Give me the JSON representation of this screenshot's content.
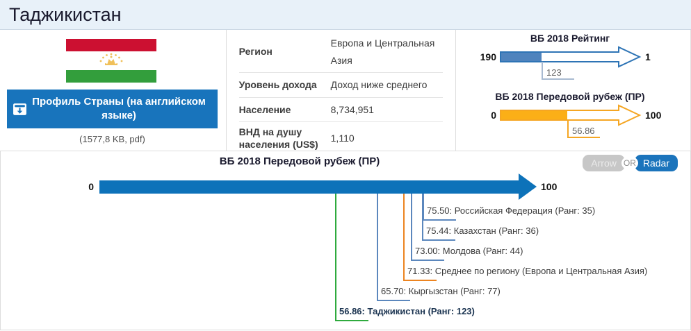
{
  "header": {
    "title": "Таджикистан"
  },
  "profile": {
    "download_button_label": "Профиль Страны (на английском языке)",
    "file_note": "(1577,8 KB, pdf)",
    "flag_colors": {
      "red": "#cc1031",
      "white": "#ffffff",
      "green": "#339e3c",
      "gold": "#f0c05a"
    }
  },
  "facts": {
    "rows": [
      {
        "label": "Регион",
        "value": "Европа и Центральная Азия"
      },
      {
        "label": "Уровень дохода",
        "value": "Доход ниже среднего"
      },
      {
        "label": "Население",
        "value": "8,734,951"
      },
      {
        "label": "ВНД на душу населения (US$)",
        "value": "1,110"
      }
    ]
  },
  "toggle": {
    "arrow_label": "Arrow",
    "or_label": "OR",
    "radar_label": "Radar",
    "active": "Radar"
  },
  "chart_data": [
    {
      "type": "arrow-gauge",
      "title": "ВБ 2018 Рейтинг",
      "min": 190,
      "max": 1,
      "value": 123,
      "min_label": "190",
      "max_label": "1",
      "value_label": "123",
      "outline_color": "#2e74b5",
      "fill_color": "#4f83bd",
      "drop_color": "#a8bad1"
    },
    {
      "type": "arrow-gauge",
      "title": "ВБ 2018 Передовой рубеж (ПР)",
      "min": 0,
      "max": 100,
      "value": 56.86,
      "min_label": "0",
      "max_label": "100",
      "value_label": "56.86",
      "outline_color": "#f5a623",
      "fill_color": "#fbaf17",
      "drop_color": "#f5a623"
    },
    {
      "type": "arrow-annotated",
      "title": "ВБ 2018 Передовой рубеж (ПР)",
      "axis_min_label": "0",
      "axis_max_label": "100",
      "axis_range": [
        0,
        100
      ],
      "arrow_color": "#0d72b9",
      "markers": [
        {
          "value": 75.5,
          "label": "75.50: Российская Федерация (Ранг: 35)",
          "color": "#5b87bd",
          "bold": false
        },
        {
          "value": 75.44,
          "label": "75.44: Казахстан (Ранг: 36)",
          "color": "#5b87bd",
          "bold": false
        },
        {
          "value": 73.0,
          "label": "73.00: Молдова (Ранг: 44)",
          "color": "#5b87bd",
          "bold": false
        },
        {
          "value": 71.33,
          "label": "71.33: Среднее по региону (Европа и Центральная Азия)",
          "color": "#ec8420",
          "bold": false
        },
        {
          "value": 65.7,
          "label": "65.70: Кыргызстан (Ранг: 77)",
          "color": "#5b87bd",
          "bold": false
        },
        {
          "value": 56.86,
          "label": "56.86: Таджикистан (Ранг: 123)",
          "color": "#2faa3e",
          "bold": true
        }
      ]
    }
  ]
}
